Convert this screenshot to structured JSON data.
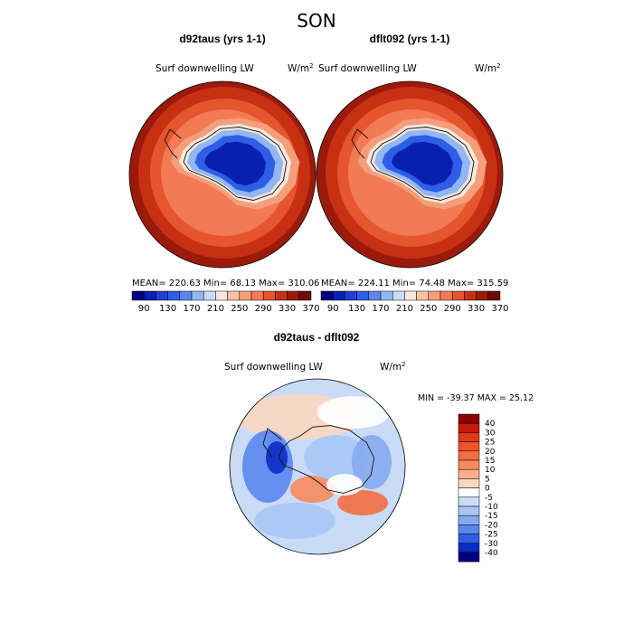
{
  "chart_data": {
    "title": "SON",
    "panels": [
      {
        "id": "left",
        "title": "d92taus (yrs 1-1)",
        "variable": "Surf downwelling LW",
        "units": "W/m",
        "units_exp": "2",
        "stats": {
          "mean_label": "MEAN=",
          "mean": "220.63",
          "min_label": "Min=",
          "min": "68.13",
          "max_label": "Max=",
          "max": "310.06"
        },
        "field": {
          "type": "contour_polar",
          "center_value": 70,
          "ring_values": [
            70,
            110,
            150,
            190,
            230,
            260,
            280,
            300,
            310
          ]
        }
      },
      {
        "id": "right",
        "title": "dflt092 (yrs 1-1)",
        "variable": "Surf downwelling LW",
        "units": "W/m",
        "units_exp": "2",
        "stats": {
          "mean_label": "MEAN=",
          "mean": "224.11",
          "min_label": "Min=",
          "min": "74.48",
          "max_label": "Max=",
          "max": "315.59"
        },
        "field": {
          "type": "contour_polar",
          "center_value": 75,
          "ring_values": [
            75,
            115,
            155,
            195,
            235,
            265,
            285,
            305,
            315
          ]
        }
      }
    ],
    "colorbar_top": {
      "levels": [
        90,
        130,
        170,
        210,
        250,
        290,
        330,
        370
      ],
      "colors": [
        "#000080",
        "#0a1fb0",
        "#1f3fd6",
        "#2f5ee6",
        "#5a86ee",
        "#93b6f4",
        "#c6dcf7",
        "#f6e8dc",
        "#f7c2a4",
        "#f59e7c",
        "#f27a55",
        "#e5552e",
        "#c83014",
        "#9c1a0a",
        "#6e0c04"
      ]
    },
    "diff_panel": {
      "title": "d92taus - dflt092",
      "variable": "Surf downwelling LW",
      "units": "W/m",
      "units_exp": "2",
      "stats_text": "MIN = -39.37 MAX =  25.12",
      "levels": [
        "40",
        "30",
        "25",
        "20",
        "15",
        "10",
        "5",
        "0",
        "-5",
        "-10",
        "-15",
        "-20",
        "-25",
        "-30",
        "-40"
      ],
      "colors": [
        "#8b0000",
        "#c41a0a",
        "#e23a16",
        "#f0522a",
        "#f46d40",
        "#f78a5c",
        "#f9b08a",
        "#fbd7c0",
        "#ffffff",
        "#c8dcf7",
        "#a9c6f4",
        "#86aaf0",
        "#5a86ee",
        "#2f5ee6",
        "#0b2bc4",
        "#000080"
      ]
    }
  }
}
